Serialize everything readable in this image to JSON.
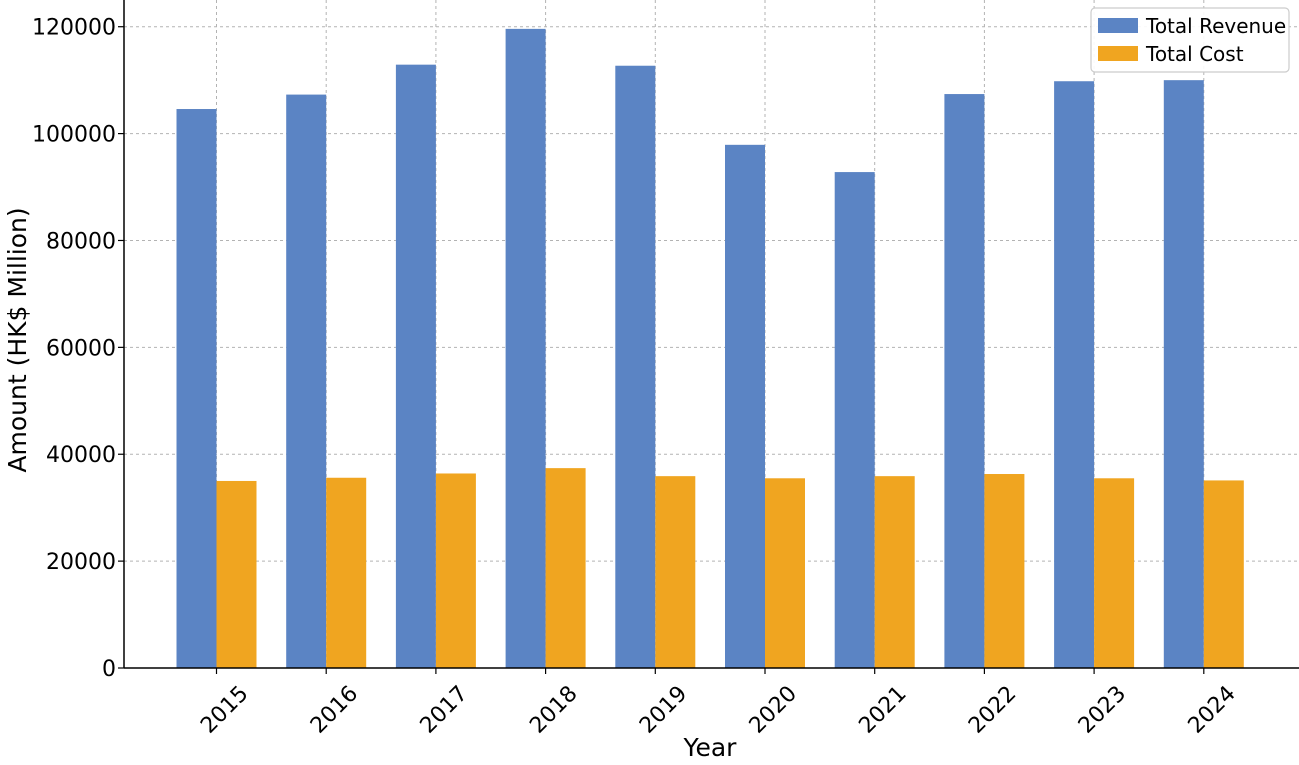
{
  "chart_data": {
    "type": "bar",
    "categories": [
      "2015",
      "2016",
      "2017",
      "2018",
      "2019",
      "2020",
      "2021",
      "2022",
      "2023",
      "2024"
    ],
    "series": [
      {
        "name": "Total Revenue",
        "color": "#5b84c4",
        "values": [
          104600,
          107300,
          112900,
          119600,
          112700,
          97900,
          92800,
          107400,
          109800,
          110000
        ]
      },
      {
        "name": "Total Cost",
        "color": "#f0a520",
        "values": [
          35000,
          35600,
          36400,
          37400,
          35900,
          35500,
          35900,
          36300,
          35500,
          35100
        ]
      }
    ],
    "title": "",
    "xlabel": "Year",
    "ylabel": "Amount (HK$ Million)",
    "ylim": [
      0,
      125000
    ],
    "yticks": [
      0,
      20000,
      40000,
      60000,
      80000,
      100000,
      120000
    ],
    "grid": true,
    "legend_position": "top-right"
  }
}
